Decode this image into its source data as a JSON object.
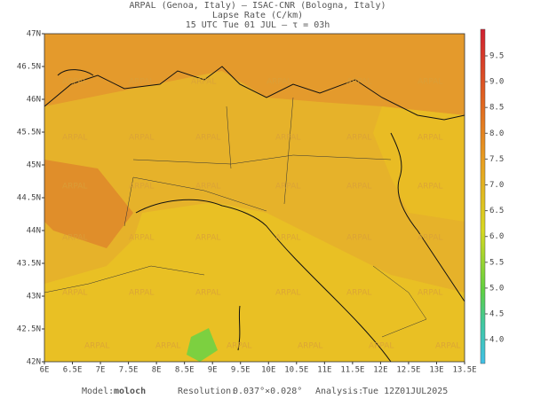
{
  "header": {
    "line1": "ARPAL (Genoa, Italy)  –  ISAC-CNR (Bologna, Italy)",
    "line2": "Lapse Rate (C/km)",
    "line3": "15 UTC Tue 01 JUL  –  τ = 03h"
  },
  "map": {
    "watermark": "ARPAL",
    "lon_labels": [
      "6E",
      "6.5E",
      "7E",
      "7.5E",
      "8E",
      "8.5E",
      "9E",
      "9.5E",
      "10E",
      "10.5E",
      "11E",
      "11.5E",
      "12E",
      "12.5E",
      "13E",
      "13.5E"
    ],
    "lat_labels": [
      "47N",
      "46.5N",
      "46N",
      "45.5N",
      "45N",
      "44.5N",
      "44N",
      "43.5N",
      "43N",
      "42.5N",
      "42N"
    ]
  },
  "colorbar": {
    "labels": [
      "9.5",
      "9.0",
      "8.5",
      "8.0",
      "7.5",
      "7.0",
      "6.5",
      "6.0",
      "5.5",
      "5.0",
      "4.5",
      "4.0"
    ]
  },
  "footer": {
    "model_label": "Model:",
    "model": "moloch",
    "resolution_label": "Resolution:",
    "resolution": "0.037°×0.028°",
    "analysis_label": "Analysis:",
    "analysis": "Tue 12Z01JUL2025"
  }
}
